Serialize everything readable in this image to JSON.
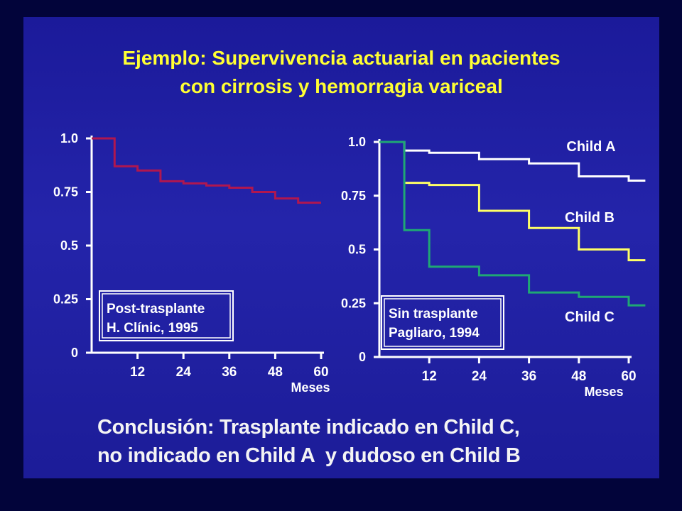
{
  "slide": {
    "title_line1": "Ejemplo: Supervivencia actuarial en pacientes",
    "title_line2": "con cirrosis y hemorragia variceal",
    "conclusion_line1": "Conclusión: Trasplante indicado en Child C,",
    "conclusion_line2": "no indicado en Child A  y dudoso en Child B"
  },
  "colors": {
    "background": "#1f1fa2",
    "title": "#ffff33",
    "axis": "#ffffff",
    "post_trasplante": "#b0174f",
    "child_a": "#ffffff",
    "child_b": "#ffff66",
    "child_c": "#1fa874"
  },
  "chart_data": [
    {
      "type": "line",
      "step": true,
      "xlabel": "Meses",
      "xticks": [
        12,
        24,
        36,
        48,
        60
      ],
      "ytick_labels": [
        "0",
        "0.25",
        "0.5",
        "0.75",
        "1.0"
      ],
      "yticks": [
        0,
        0.25,
        0.5,
        0.75,
        1.0
      ],
      "xlim": [
        0,
        60
      ],
      "ylim": [
        0,
        1
      ],
      "box_line1": "Post-trasplante",
      "box_line2": "H. Clínic, 1995",
      "series": [
        {
          "colorKey": "post_trasplante",
          "x": [
            0,
            6,
            6,
            12,
            12,
            18,
            18,
            24,
            24,
            30,
            30,
            36,
            36,
            42,
            42,
            48,
            48,
            54,
            54,
            60
          ],
          "y": [
            1.0,
            1.0,
            0.87,
            0.87,
            0.85,
            0.85,
            0.8,
            0.8,
            0.79,
            0.79,
            0.78,
            0.78,
            0.77,
            0.77,
            0.75,
            0.75,
            0.72,
            0.72,
            0.7,
            0.7
          ]
        }
      ]
    },
    {
      "type": "line",
      "step": true,
      "xlabel": "Meses",
      "xticks": [
        12,
        24,
        36,
        48,
        60
      ],
      "ytick_labels": [
        "0",
        "0.25",
        "0.5",
        "0.75",
        "1.0"
      ],
      "yticks": [
        0,
        0.25,
        0.5,
        0.75,
        1.0
      ],
      "xlim": [
        0,
        60
      ],
      "ylim": [
        0,
        1
      ],
      "box_line1": "Sin trasplante",
      "box_line2": "Pagliaro, 1994",
      "series": [
        {
          "name": "Child A",
          "colorKey": "child_a",
          "x": [
            0,
            6,
            6,
            12,
            12,
            24,
            24,
            36,
            36,
            48,
            48,
            60,
            60,
            64
          ],
          "y": [
            1.0,
            1.0,
            0.96,
            0.96,
            0.95,
            0.95,
            0.92,
            0.92,
            0.9,
            0.9,
            0.84,
            0.84,
            0.82,
            0.82
          ]
        },
        {
          "name": "Child B",
          "colorKey": "child_b",
          "x": [
            6,
            12,
            12,
            24,
            24,
            36,
            36,
            48,
            48,
            60,
            60,
            64
          ],
          "y": [
            0.81,
            0.81,
            0.8,
            0.8,
            0.68,
            0.68,
            0.6,
            0.6,
            0.5,
            0.5,
            0.45,
            0.45
          ]
        },
        {
          "name": "Child C",
          "colorKey": "child_c",
          "x": [
            0,
            6,
            6,
            12,
            12,
            24,
            24,
            36,
            36,
            48,
            48,
            60,
            60,
            64
          ],
          "y": [
            1.0,
            1.0,
            0.59,
            0.59,
            0.42,
            0.42,
            0.38,
            0.38,
            0.3,
            0.3,
            0.28,
            0.28,
            0.24,
            0.24
          ]
        }
      ]
    }
  ]
}
